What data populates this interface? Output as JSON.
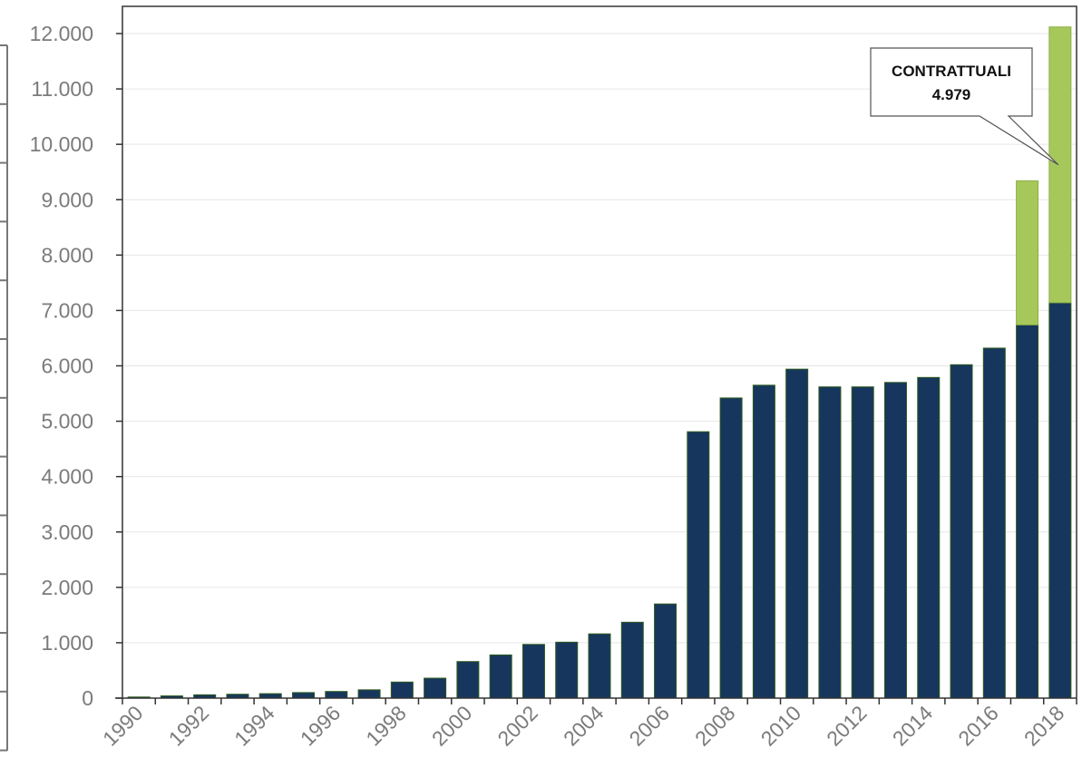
{
  "chart_data": {
    "type": "bar",
    "stacked": true,
    "categories": [
      "1990",
      "1991",
      "1992",
      "1993",
      "1994",
      "1995",
      "1996",
      "1997",
      "1998",
      "1999",
      "2000",
      "2001",
      "2002",
      "2003",
      "2004",
      "2005",
      "2006",
      "2007",
      "2008",
      "2009",
      "2010",
      "2011",
      "2012",
      "2013",
      "2014",
      "2015",
      "2016",
      "2017",
      "2018"
    ],
    "x_tick_labels": [
      "1990",
      "1992",
      "1994",
      "1996",
      "1998",
      "2000",
      "2002",
      "2004",
      "2006",
      "2008",
      "2010",
      "2012",
      "2014",
      "2016",
      "2018"
    ],
    "series": [
      {
        "color": "#17365d",
        "values": [
          20,
          40,
          60,
          70,
          80,
          100,
          120,
          150,
          290,
          360,
          660,
          780,
          970,
          1010,
          1160,
          1370,
          1700,
          4810,
          5420,
          5650,
          5940,
          5620,
          5620,
          5700,
          5790,
          6020,
          6320,
          6740,
          7140
        ]
      },
      {
        "color": "#a6c85b",
        "values": [
          0,
          0,
          0,
          0,
          0,
          0,
          0,
          0,
          0,
          0,
          0,
          0,
          0,
          0,
          0,
          0,
          0,
          0,
          0,
          0,
          0,
          0,
          0,
          0,
          0,
          0,
          0,
          2600,
          4979
        ]
      }
    ],
    "ylim": [
      0,
      12000
    ],
    "y_ticks": [
      0,
      1000,
      2000,
      3000,
      4000,
      5000,
      6000,
      7000,
      8000,
      9000,
      10000,
      11000,
      12000
    ],
    "y_tick_labels": [
      "0",
      "1.000",
      "2.000",
      "3.000",
      "4.000",
      "5.000",
      "6.000",
      "7.000",
      "8.000",
      "9.000",
      "10.000",
      "11.000",
      "12.000"
    ],
    "grid": true,
    "annotation": {
      "line1": "CONTRATTUALI",
      "line2": "4.979",
      "category": "2018"
    },
    "title": "",
    "xlabel": "",
    "ylabel": ""
  }
}
